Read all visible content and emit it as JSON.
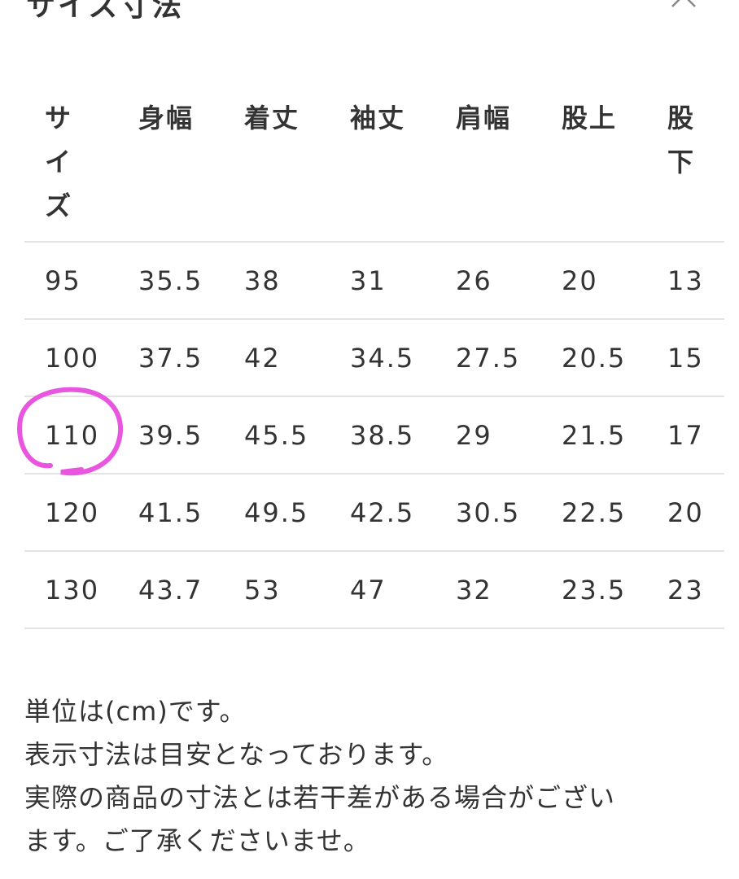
{
  "modal": {
    "title": "サイズ寸法",
    "close_icon": "close-icon"
  },
  "table": {
    "headers": [
      "サイズ",
      "身幅",
      "着丈",
      "袖丈",
      "肩幅",
      "股上",
      "股下"
    ],
    "rows": [
      [
        "95",
        "35.5",
        "38",
        "31",
        "26",
        "20",
        "13"
      ],
      [
        "100",
        "37.5",
        "42",
        "34.5",
        "27.5",
        "20.5",
        "15"
      ],
      [
        "110",
        "39.5",
        "45.5",
        "38.5",
        "29",
        "21.5",
        "17"
      ],
      [
        "120",
        "41.5",
        "49.5",
        "42.5",
        "30.5",
        "22.5",
        "20"
      ],
      [
        "130",
        "43.7",
        "53",
        "47",
        "32",
        "23.5",
        "23"
      ]
    ]
  },
  "notes": [
    "単位は(cm)です。",
    "表示寸法は目安となっております。",
    "実際の商品の寸法とは若干差がある場合がござい",
    "ます。ご了承くださいませ。"
  ],
  "annotation": {
    "highlighted_size": "110",
    "color": "#e856e0"
  }
}
